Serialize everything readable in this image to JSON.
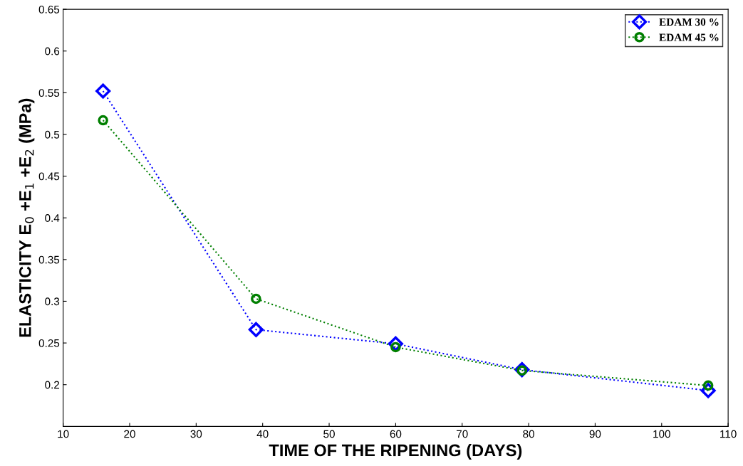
{
  "chart_data": {
    "type": "line",
    "xlabel": "TIME OF THE RIPENING (DAYS)",
    "ylabel": "ELASTICITY E$_{0}$ +E$_{1}$ +E$_{2}$ (MPa)",
    "x": [
      16,
      39,
      60,
      79,
      107
    ],
    "series": [
      {
        "name": "EDAM 30 %",
        "color": "#0000ff",
        "marker": "diamond",
        "values": [
          0.552,
          0.266,
          0.249,
          0.218,
          0.193
        ]
      },
      {
        "name": "EDAM 45 %",
        "color": "#007f00",
        "marker": "circle",
        "values": [
          0.517,
          0.303,
          0.245,
          0.217,
          0.199
        ]
      }
    ],
    "xlim": [
      10,
      110
    ],
    "xticks": [
      10,
      20,
      30,
      40,
      50,
      60,
      70,
      80,
      90,
      100,
      110
    ],
    "ylim": [
      0.15,
      0.65
    ],
    "yticks": [
      0.2,
      0.25,
      0.3,
      0.35,
      0.4,
      0.45,
      0.5,
      0.55,
      0.6,
      0.65
    ],
    "line_style": "dotted",
    "legend": "top right",
    "grid": false
  }
}
